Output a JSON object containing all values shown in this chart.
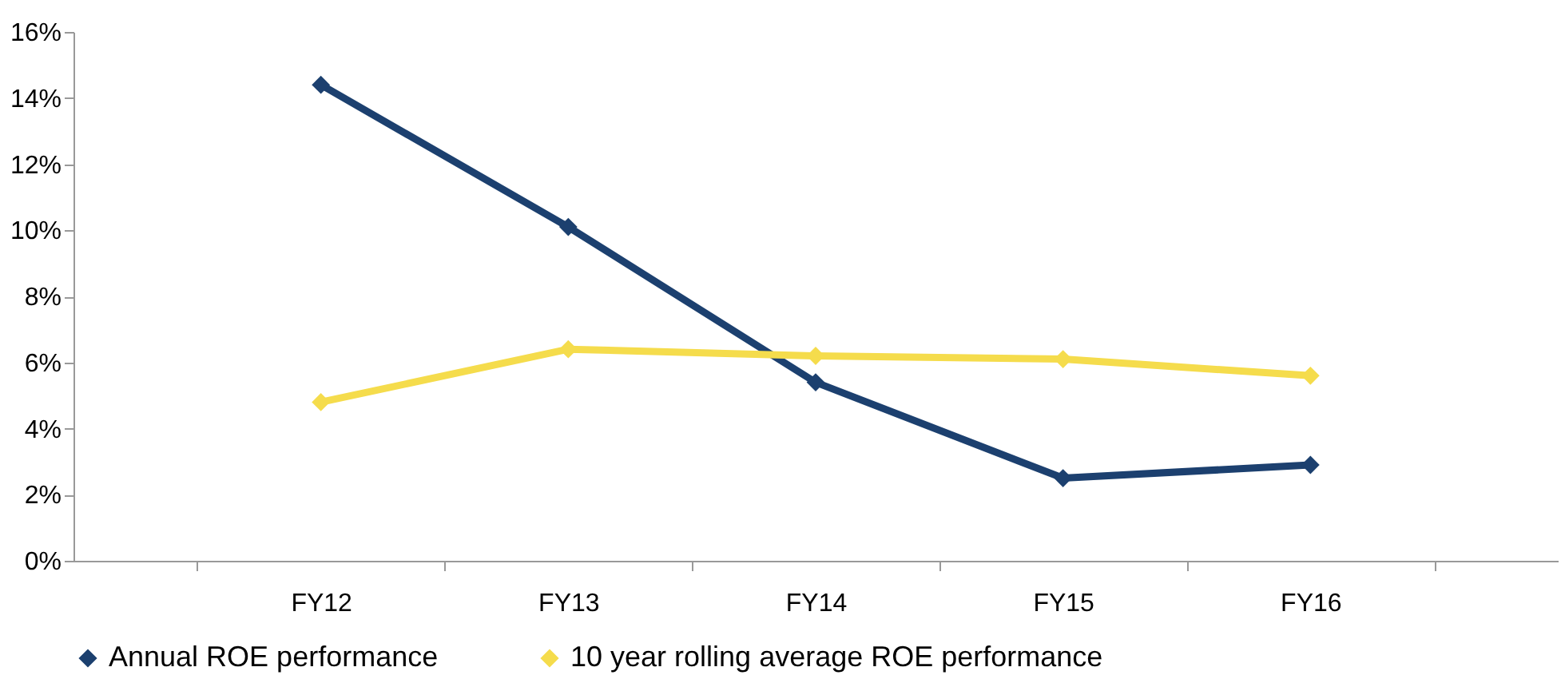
{
  "chart_data": {
    "type": "line",
    "categories": [
      "FY12",
      "FY13",
      "FY14",
      "FY15",
      "FY16"
    ],
    "series": [
      {
        "name": "Annual ROE performance",
        "color": "#1c406f",
        "values": [
          14.4,
          10.1,
          5.4,
          2.5,
          2.9
        ]
      },
      {
        "name": "10 year rolling average ROE performance",
        "color": "#f5dc4c",
        "values": [
          4.8,
          6.4,
          6.2,
          6.1,
          5.6
        ]
      }
    ],
    "ylim": [
      0,
      16
    ],
    "yticks": [
      {
        "value": 0,
        "label": "0%"
      },
      {
        "value": 2,
        "label": "2%"
      },
      {
        "value": 4,
        "label": "4%"
      },
      {
        "value": 6,
        "label": "6%"
      },
      {
        "value": 8,
        "label": "8%"
      },
      {
        "value": 10,
        "label": "10%"
      },
      {
        "value": 12,
        "label": "12%"
      },
      {
        "value": 14,
        "label": "14%"
      },
      {
        "value": 16,
        "label": "16%"
      }
    ],
    "marker": "diamond",
    "legend": "bottom"
  }
}
